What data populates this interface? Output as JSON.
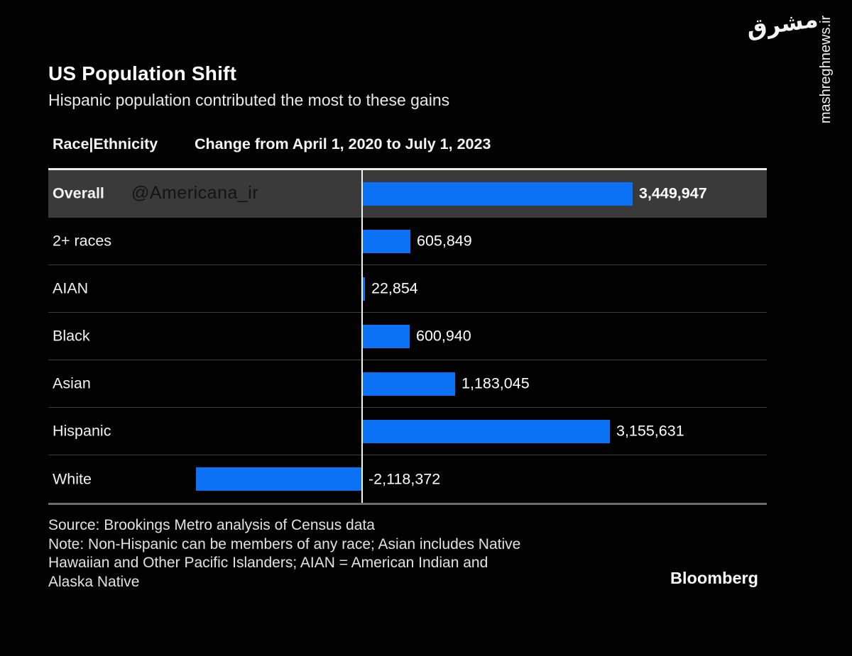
{
  "chart_data": {
    "type": "bar",
    "orientation": "horizontal",
    "title": "US Population Shift",
    "subtitle": "Hispanic population contributed the most to these gains",
    "col_header_left": "Race|Ethnicity",
    "col_header_right": "Change from April 1, 2020 to July 1, 2023",
    "categories": [
      "Overall",
      "2+ races",
      "AIAN",
      "Black",
      "Asian",
      "Hispanic",
      "White"
    ],
    "values": [
      3449947,
      605849,
      22854,
      600940,
      1183045,
      3155631,
      -2118372
    ],
    "value_labels": [
      "3,449,947",
      "605,849",
      "22,854",
      "600,940",
      "1,183,045",
      "3,155,631",
      "-2,118,372"
    ],
    "highlight_row": "Overall",
    "bar_color": "#0b72f5",
    "highlight_bg": "#3a3a3a",
    "xlim": [
      -2118372,
      3449947
    ],
    "grid": "horizontal-row-separators",
    "legend": "none"
  },
  "footer": {
    "source": "Source: Brookings Metro analysis of Census data",
    "note": "Note: Non-Hispanic can be members of any race; Asian includes Native\nHawaiian and Other Pacific Islanders; AIAN = American Indian and\nAlaska Native",
    "brand": "Bloomberg"
  },
  "watermarks": {
    "americana": "@Americana_ir",
    "site": "mashreghnews.ir",
    "logo_text": "مشرق"
  }
}
